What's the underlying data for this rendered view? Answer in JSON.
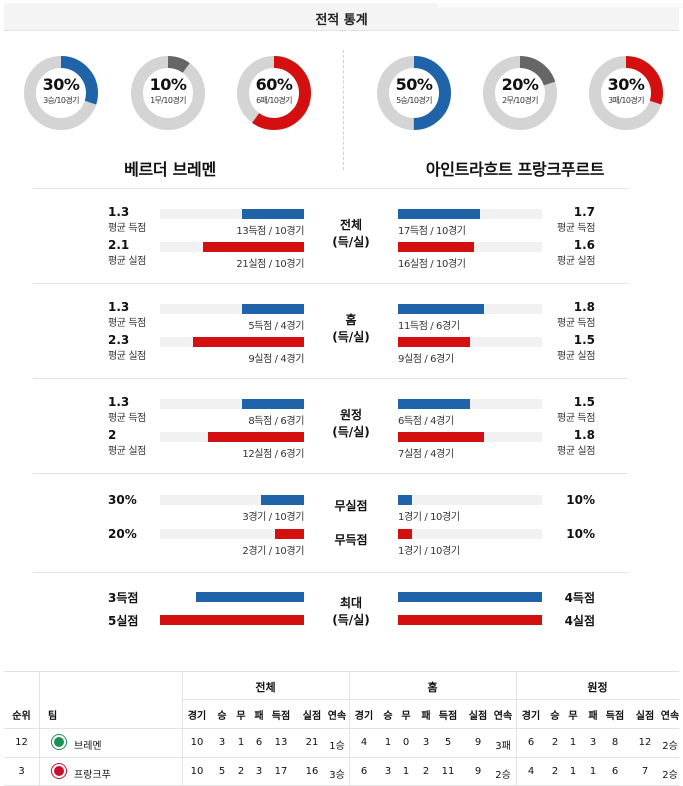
{
  "title": "전적 통계",
  "teams": {
    "home": {
      "name": "베르더 브레멘",
      "donuts": [
        {
          "pct": "30%",
          "sub": "3승/10경기",
          "fraction": 0.3,
          "color": "#1f63a8"
        },
        {
          "pct": "10%",
          "sub": "1무/10경기",
          "fraction": 0.1,
          "color": "#666666"
        },
        {
          "pct": "60%",
          "sub": "6패/10경기",
          "fraction": 0.6,
          "color": "#d40f0f"
        }
      ]
    },
    "away": {
      "name": "아인트라흐트 프랑크푸르트",
      "donuts": [
        {
          "pct": "50%",
          "sub": "5승/10경기",
          "fraction": 0.5,
          "color": "#1f63a8"
        },
        {
          "pct": "20%",
          "sub": "2무/10경기",
          "fraction": 0.2,
          "color": "#666666"
        },
        {
          "pct": "30%",
          "sub": "3패/10경기",
          "fraction": 0.3,
          "color": "#d40f0f"
        }
      ]
    }
  },
  "sections": [
    {
      "label1": "전체",
      "label2": "(득/실)",
      "rows": [
        {
          "left_num": "1.3",
          "left_lbl": "평균 득점",
          "left_cap": "13득점 / 10경기",
          "left_frac": 0.43,
          "right_num": "1.7",
          "right_lbl": "평균 득점",
          "right_cap": "17득점 / 10경기",
          "right_frac": 0.57,
          "color": "blue"
        },
        {
          "left_num": "2.1",
          "left_lbl": "평균 실점",
          "left_cap": "21실점 / 10경기",
          "left_frac": 0.7,
          "right_num": "1.6",
          "right_lbl": "평균 실점",
          "right_cap": "16실점 / 10경기",
          "right_frac": 0.53,
          "color": "red"
        }
      ]
    },
    {
      "label1": "홈",
      "label2": "(득/실)",
      "rows": [
        {
          "left_num": "1.3",
          "left_lbl": "평균 득점",
          "left_cap": "5득점 / 4경기",
          "left_frac": 0.43,
          "right_num": "1.8",
          "right_lbl": "평균 득점",
          "right_cap": "11득점 / 6경기",
          "right_frac": 0.6,
          "color": "blue"
        },
        {
          "left_num": "2.3",
          "left_lbl": "평균 실점",
          "left_cap": "9실점 / 4경기",
          "left_frac": 0.77,
          "right_num": "1.5",
          "right_lbl": "평균 실점",
          "right_cap": "9실점 / 6경기",
          "right_frac": 0.5,
          "color": "red"
        }
      ]
    },
    {
      "label1": "원정",
      "label2": "(득/실)",
      "rows": [
        {
          "left_num": "1.3",
          "left_lbl": "평균 득점",
          "left_cap": "8득점 / 6경기",
          "left_frac": 0.43,
          "right_num": "1.5",
          "right_lbl": "평균 득점",
          "right_cap": "6득점 / 4경기",
          "right_frac": 0.5,
          "color": "blue"
        },
        {
          "left_num": "2",
          "left_lbl": "평균 실점",
          "left_cap": "12실점 / 6경기",
          "left_frac": 0.67,
          "right_num": "1.8",
          "right_lbl": "평균 실점",
          "right_cap": "7실점 / 4경기",
          "right_frac": 0.6,
          "color": "red"
        }
      ]
    }
  ],
  "special": [
    {
      "label": "무실점",
      "left_num": "30%",
      "left_cap": "3경기 / 10경기",
      "left_frac": 0.3,
      "right_num": "10%",
      "right_cap": "1경기 / 10경기",
      "right_frac": 0.1,
      "color": "blue"
    },
    {
      "label": "무득점",
      "left_num": "20%",
      "left_cap": "2경기 / 10경기",
      "left_frac": 0.2,
      "right_num": "10%",
      "right_cap": "1경기 / 10경기",
      "right_frac": 0.1,
      "color": "red"
    }
  ],
  "max": {
    "label1": "최대",
    "label2": "(득/실)",
    "rows": [
      {
        "left": "3득점",
        "right": "4득점",
        "left_frac": 0.75,
        "right_frac": 1.0,
        "color": "blue"
      },
      {
        "left": "5실점",
        "right": "4실점",
        "left_frac": 1.0,
        "right_frac": 1.0,
        "color": "red"
      }
    ]
  },
  "table": {
    "groups": [
      "전체",
      "홈",
      "원정"
    ],
    "col_rank": "순위",
    "col_team": "팀",
    "cols": [
      "경기",
      "승",
      "무",
      "패",
      "득점",
      "실점",
      "연속"
    ],
    "rows": [
      {
        "rank": "12",
        "team": "브레멘",
        "crest_color": "#1d9053",
        "total": [
          "10",
          "3",
          "1",
          "6",
          "13",
          "21",
          "1승"
        ],
        "home": [
          "4",
          "1",
          "0",
          "3",
          "5",
          "9",
          "3패"
        ],
        "away": [
          "6",
          "2",
          "1",
          "3",
          "8",
          "12",
          "2승"
        ]
      },
      {
        "rank": "3",
        "team": "프랑크푸",
        "crest_color": "#c8102e",
        "total": [
          "10",
          "5",
          "2",
          "3",
          "17",
          "16",
          "3승"
        ],
        "home": [
          "6",
          "3",
          "1",
          "2",
          "11",
          "9",
          "2승"
        ],
        "away": [
          "4",
          "2",
          "1",
          "1",
          "6",
          "7",
          "2승"
        ]
      }
    ]
  }
}
